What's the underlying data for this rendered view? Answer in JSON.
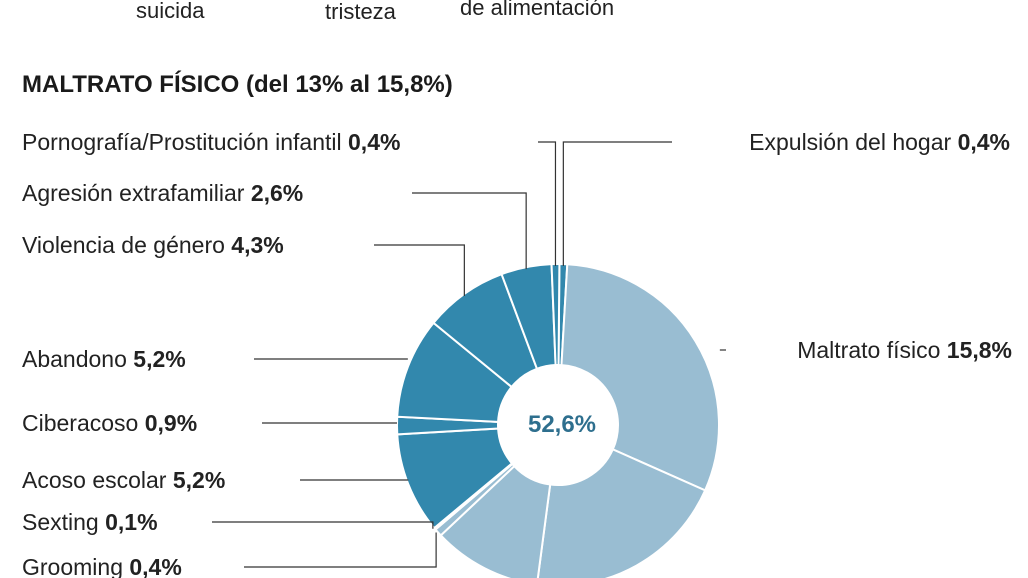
{
  "top_labels": [
    "suicida",
    "tristeza",
    "de alimentación"
  ],
  "section_title": "MALTRATO FÍSICO (del 13% al 15,8%)",
  "center_label": "52,6%",
  "colors": {
    "light": "#99bdd2",
    "dark": "#3288ad",
    "center_text": "#2e6f8e"
  },
  "chart_data": {
    "type": "pie",
    "title": "MALTRATO FÍSICO (del 13% al 15,8%)",
    "center_value": "52,6%",
    "slices": [
      {
        "label": "Expulsión del hogar",
        "value_text": "0,4%",
        "value": 0.4,
        "tone": "dark"
      },
      {
        "label": "Maltrato físico",
        "value_text": "15,8%",
        "value": 15.8,
        "tone": "light"
      },
      {
        "label": "",
        "value_text": "",
        "value": 10.5,
        "tone": "light"
      },
      {
        "label": "",
        "value_text": "",
        "value": 5.6,
        "tone": "light"
      },
      {
        "label": "Grooming",
        "value_text": "0,4%",
        "value": 0.4,
        "tone": "light"
      },
      {
        "label": "Sexting",
        "value_text": "0,1%",
        "value": 0.1,
        "tone": "light"
      },
      {
        "label": "Acoso escolar",
        "value_text": "5,2%",
        "value": 5.2,
        "tone": "dark"
      },
      {
        "label": "Ciberacoso",
        "value_text": "0,9%",
        "value": 0.9,
        "tone": "dark"
      },
      {
        "label": "Abandono",
        "value_text": "5,2%",
        "value": 5.2,
        "tone": "dark"
      },
      {
        "label": "Violencia de género",
        "value_text": "4,3%",
        "value": 4.3,
        "tone": "dark"
      },
      {
        "label": "Agresión extrafamiliar",
        "value_text": "2,6%",
        "value": 2.6,
        "tone": "dark"
      },
      {
        "label": "Pornografía/Prostitución infantil",
        "value_text": "0,4%",
        "value": 0.4,
        "tone": "dark"
      }
    ]
  }
}
